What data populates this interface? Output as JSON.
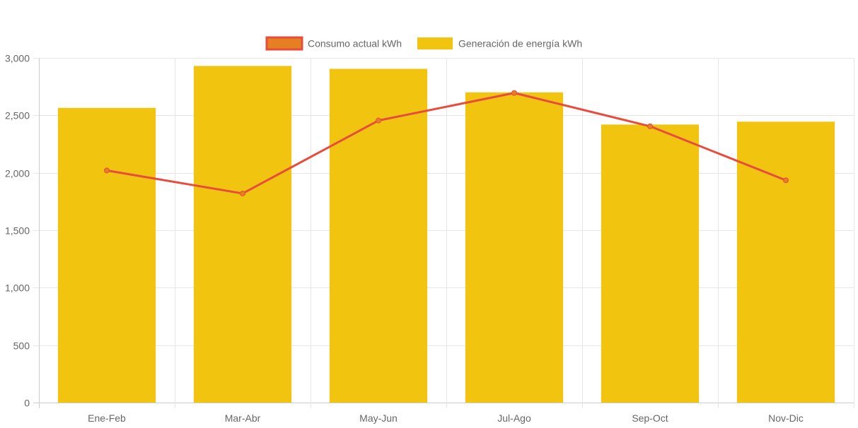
{
  "chart_data": {
    "type": "bar",
    "title": "",
    "xlabel": "",
    "ylabel": "",
    "categories": [
      "Ene-Feb",
      "Mar-Abr",
      "May-Jun",
      "Jul-Ago",
      "Sep-Oct",
      "Nov-Dic"
    ],
    "ylim": [
      0,
      3000
    ],
    "yticks": [
      0,
      500,
      1000,
      1500,
      2000,
      2500,
      3000
    ],
    "ytick_labels": [
      "0",
      "500",
      "1,000",
      "1,500",
      "2,000",
      "2,500",
      "3,000"
    ],
    "grid": true,
    "legend_position": "top-center",
    "series": [
      {
        "name": "Consumo actual kWh",
        "type": "line",
        "color": "#e74c3c",
        "point_color": "#e67e22",
        "values": [
          2020,
          1820,
          2455,
          2695,
          2405,
          1935
        ]
      },
      {
        "name": "Generación de energía kWh",
        "type": "bar",
        "color": "#f1c40f",
        "values": [
          2565,
          2930,
          2905,
          2700,
          2420,
          2445
        ]
      }
    ]
  }
}
